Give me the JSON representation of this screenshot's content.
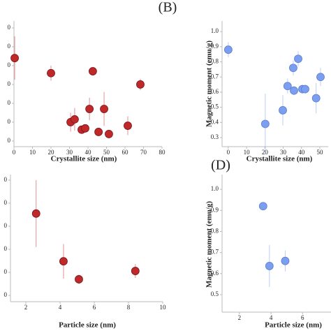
{
  "chart_data": [
    {
      "type": "scatter",
      "xlabel": "Crystallite size (nm)",
      "color": "#c0282a",
      "x": [
        0.4,
        20,
        42.6,
        68.3,
        40.8,
        48.7,
        30.6,
        32.8,
        36.6,
        38.5,
        45.7,
        51.3,
        61.5
      ],
      "values": [
        4.4,
        3.6,
        3.7,
        3.0,
        1.7,
        1.7,
        1.0,
        1.15,
        0.6,
        0.67,
        0.48,
        0.37,
        0.81
      ],
      "errors": [
        1.15,
        0.4,
        0.1,
        0.3,
        0.6,
        0.9,
        0.5,
        0.6,
        0.2,
        0.2,
        0.2,
        0.2,
        0.5
      ],
      "xlim": [
        0,
        80
      ],
      "ylim": [
        -0.3,
        6.37
      ],
      "xticks": [
        0,
        10,
        20,
        30,
        40,
        50,
        60,
        70,
        80
      ],
      "yticks": [
        {
          "value": 0,
          "label": "0"
        },
        {
          "value": 1,
          "label": "0"
        },
        {
          "value": 2,
          "label": "0"
        },
        {
          "value": 3,
          "label": "0"
        },
        {
          "value": 4,
          "label": "0"
        },
        {
          "value": 5,
          "label": "0"
        },
        {
          "value": 6,
          "label": "0"
        }
      ]
    },
    {
      "type": "scatter",
      "panel_label": "(B)",
      "xlabel": "Crystallite size (nm)",
      "ylabel": "Magnetic moment (emu/g)",
      "color": "#7b9ef0",
      "x": [
        0,
        20.2,
        29.8,
        32.4,
        35.5,
        35.9,
        38.2,
        40.5,
        42,
        48,
        50.4
      ],
      "values": [
        0.88,
        0.39,
        0.48,
        0.64,
        0.76,
        0.61,
        0.82,
        0.62,
        0.62,
        0.56,
        0.7
      ],
      "errors": [
        0.05,
        0.2,
        0.1,
        0.05,
        0.05,
        0.03,
        0.05,
        0.03,
        0.03,
        0.1,
        0.06
      ],
      "xlim": [
        -3.4,
        54.6
      ],
      "ylim": [
        0.24,
        1.07
      ],
      "xticks": [
        0,
        10,
        20,
        30,
        40,
        50
      ],
      "yticks": [
        0.3,
        0.4,
        0.5,
        0.6,
        0.7,
        0.8,
        0.9,
        {
          "value": 1,
          "label": "1.0"
        }
      ]
    },
    {
      "type": "scatter",
      "xlabel": "Particle size (nm)",
      "color": "#c0282a",
      "x": [
        2.6,
        4.2,
        5.1,
        8.4
      ],
      "values": [
        3.55,
        1.48,
        0.7,
        1.06
      ],
      "errors": [
        1.45,
        0.75,
        0.2,
        0.3
      ],
      "xlim": [
        1.1,
        10
      ],
      "ylim": [
        -0.27,
        5.24
      ],
      "xticks": [
        2,
        4,
        6,
        8,
        10
      ],
      "yticks": [
        {
          "value": 0,
          "label": "0"
        },
        {
          "value": 1,
          "label": "0"
        },
        {
          "value": 2,
          "label": "0"
        },
        {
          "value": 3,
          "label": "0"
        },
        {
          "value": 4,
          "label": "0"
        },
        {
          "value": 5,
          "label": "0"
        }
      ]
    },
    {
      "type": "scatter",
      "panel_label": "(D)",
      "xlabel": "Particle size (nm)",
      "ylabel": "Magnetic moment (emu/g)",
      "color": "#7b9ef0",
      "x": [
        3.5,
        3.9,
        4.9
      ],
      "values": [
        0.92,
        0.636,
        0.66
      ],
      "errors": [
        0.01,
        0.1,
        0.05
      ],
      "xlim": [
        0.9,
        7.8
      ],
      "ylim": [
        0.417,
        1.07
      ],
      "xticks": [
        2,
        4,
        6
      ],
      "yticks": [
        0.5,
        0.6,
        0.7,
        0.8,
        0.9,
        {
          "value": 1,
          "label": "1.0"
        }
      ]
    }
  ]
}
